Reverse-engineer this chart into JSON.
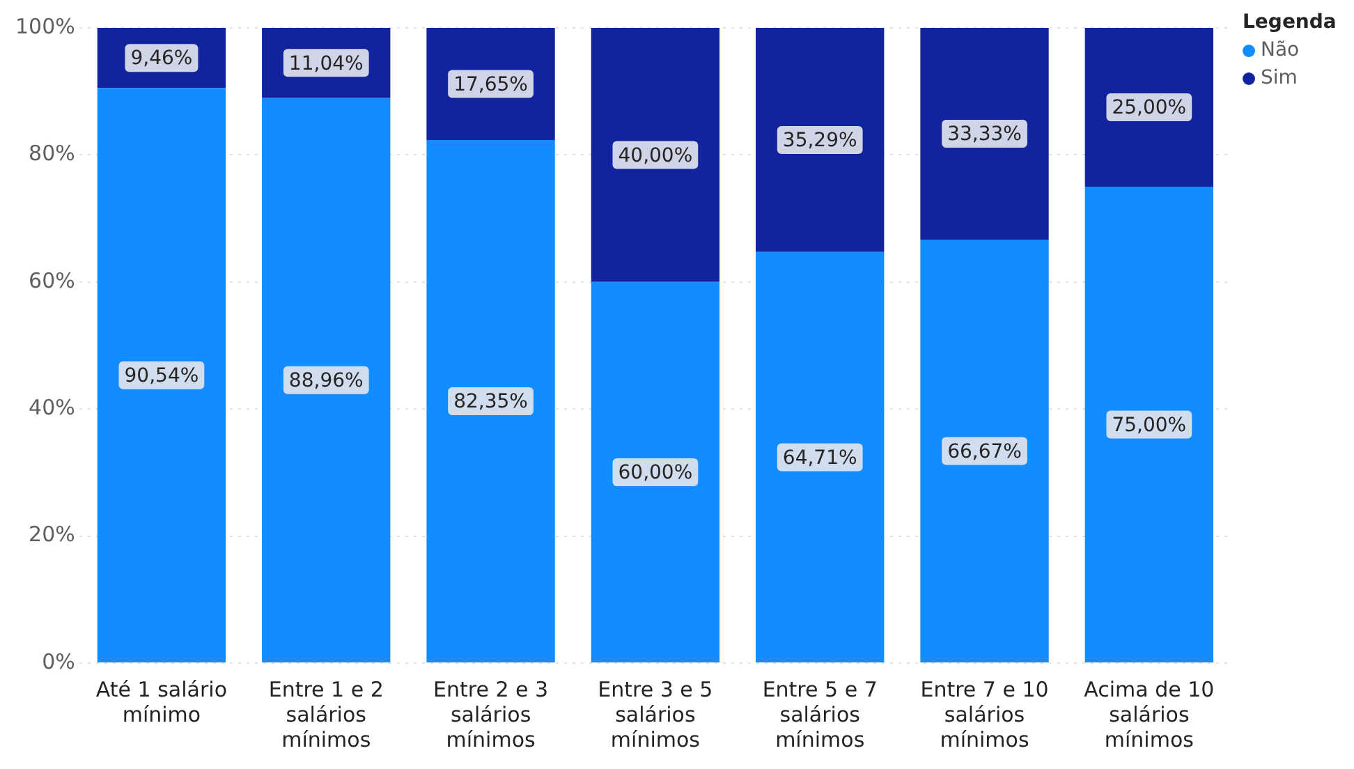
{
  "chart_data": {
    "type": "bar",
    "stacked": true,
    "legend_title": "Legenda",
    "legend": "top right",
    "grid": "y",
    "categories": [
      "Até 1 salário mínimo",
      "Entre 1 e 2 salários mínimos",
      "Entre 2 e 3 salários mínimos",
      "Entre 3 e 5 salários mínimos",
      "Entre 5 e 7 salários mínimos",
      "Entre 7 e 10 salários mínimos",
      "Acima de 10 salários mínimos"
    ],
    "series": [
      {
        "name": "Não",
        "color": "#118dff",
        "values": [
          90.54,
          88.96,
          82.35,
          60.0,
          64.71,
          66.67,
          75.0
        ],
        "value_labels": [
          "90,54%",
          "88,96%",
          "82,35%",
          "60,00%",
          "64,71%",
          "66,67%",
          "75,00%"
        ]
      },
      {
        "name": "Sim",
        "color": "#12239e",
        "values": [
          9.46,
          11.04,
          17.65,
          40.0,
          35.29,
          33.33,
          25.0
        ],
        "value_labels": [
          "9,46%",
          "11,04%",
          "17,65%",
          "40,00%",
          "35,29%",
          "33,33%",
          "25,00%"
        ]
      }
    ],
    "ylim": [
      0,
      100
    ],
    "yticks": [
      {
        "value": 0,
        "label": "0%"
      },
      {
        "value": 20,
        "label": "20%"
      },
      {
        "value": 40,
        "label": "40%"
      },
      {
        "value": 60,
        "label": "60%"
      },
      {
        "value": 80,
        "label": "80%"
      },
      {
        "value": 100,
        "label": "100%"
      }
    ]
  }
}
